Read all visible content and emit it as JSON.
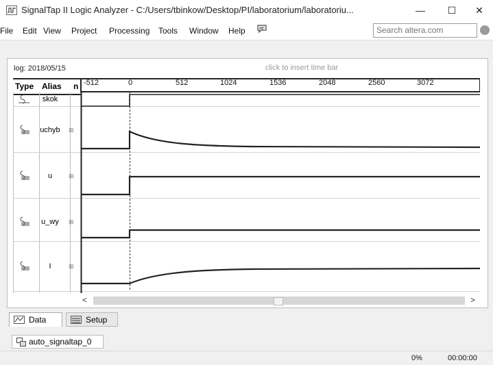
{
  "window": {
    "title": "SignalTap II Logic Analyzer - C:/Users/tbinkow/Desktop/PI/laboratorium/laboratoriu...",
    "minimize_glyph": "—",
    "maximize_glyph": "☐",
    "close_glyph": "✕"
  },
  "menu": {
    "items": [
      "File",
      "Edit",
      "View",
      "Project",
      "Processing",
      "Tools",
      "Window",
      "Help"
    ],
    "help_icon": "speech-bubble-icon",
    "search_placeholder": "Search altera.com",
    "search_icon": "globe-icon"
  },
  "waveform": {
    "log_label": "log: 2018/05/15",
    "insert_hint": "click to insert time bar",
    "columns": {
      "type": "Type",
      "alias": "Alias",
      "name": "n"
    },
    "ruler_ticks": [
      "-512",
      "0",
      "512",
      "1024",
      "1536",
      "2048",
      "2560",
      "3072"
    ],
    "signals": [
      {
        "alias": "skok",
        "icon": "signal-input-icon",
        "expandable": false
      },
      {
        "alias": "uchyb",
        "icon": "signal-bus-icon",
        "expandable": true
      },
      {
        "alias": "u",
        "icon": "signal-bus-icon",
        "expandable": true
      },
      {
        "alias": "u_wy",
        "icon": "signal-bus-icon",
        "expandable": true
      },
      {
        "alias": "I",
        "icon": "signal-bus-icon",
        "expandable": true
      }
    ],
    "scroll_left": "<",
    "scroll_right": ">"
  },
  "tabs": {
    "data": "Data",
    "setup": "Setup"
  },
  "instance": {
    "name": "auto_signaltap_0"
  },
  "status": {
    "progress": "0%",
    "time": "00:00:00"
  }
}
